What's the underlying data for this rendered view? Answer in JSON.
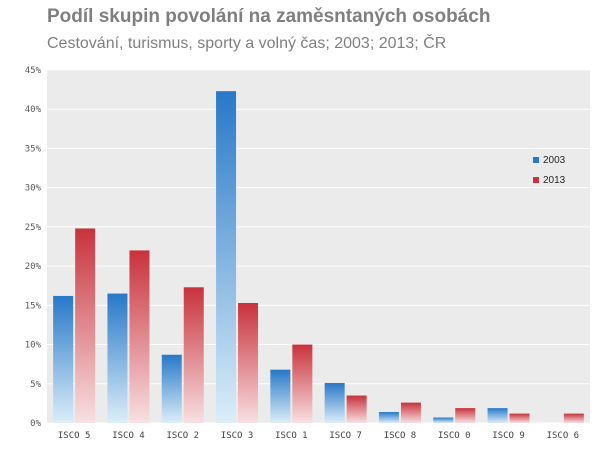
{
  "title": "Podíl skupin povolání na zaměsntaných osobách",
  "subtitle": "Cestování, turismus,  sporty  a volný čas; 2003; 2013; ČR",
  "chart_data": {
    "type": "bar",
    "title": "Podíl skupin povolání na zaměsntaných osobách",
    "subtitle": "Cestování, turismus,  sporty  a volný čas; 2003; 2013; ČR",
    "categories": [
      "ISCO 5",
      "ISCO 4",
      "ISCO 2",
      "ISCO 3",
      "ISCO 1",
      "ISCO 7",
      "ISCO 8",
      "ISCO 0",
      "ISCO 9",
      "ISCO 6"
    ],
    "series": [
      {
        "name": "2003",
        "color": "#2878c8",
        "values": [
          16.2,
          16.5,
          8.7,
          42.3,
          6.8,
          5.1,
          1.4,
          0.7,
          1.9,
          0.0
        ]
      },
      {
        "name": "2013",
        "color": "#c8323c",
        "values": [
          24.8,
          22.0,
          17.3,
          15.3,
          10.0,
          3.5,
          2.6,
          1.9,
          1.2,
          1.2
        ]
      }
    ],
    "ylim": [
      0,
      45
    ],
    "yticks": [
      0,
      5,
      10,
      15,
      20,
      25,
      30,
      35,
      40,
      45
    ],
    "ytick_labels": [
      "0%",
      "5%",
      "10%",
      "15%",
      "20%",
      "25%",
      "30%",
      "35%",
      "40%",
      "45%"
    ],
    "xlabel": "",
    "ylabel": "",
    "grid": true,
    "legend_position": "right"
  }
}
